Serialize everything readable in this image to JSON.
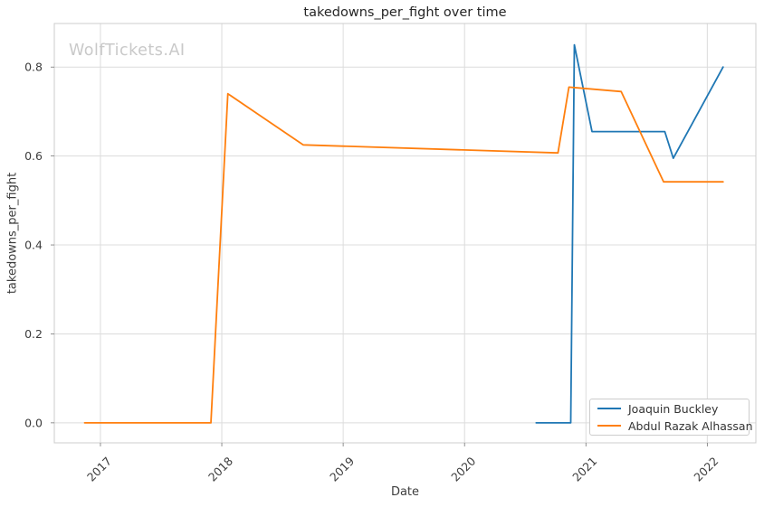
{
  "chart_data": {
    "type": "line",
    "title": "takedowns_per_fight over time",
    "xlabel": "Date",
    "ylabel": "takedowns_per_fight",
    "watermark": "WolfTickets.AI",
    "grid": true,
    "legend_position": "lower right",
    "x_unit": "decimal_year",
    "xlim": [
      2016.62,
      2022.4
    ],
    "ylim": [
      -0.045,
      0.898
    ],
    "x_ticks": [
      2017,
      2018,
      2019,
      2020,
      2021,
      2022
    ],
    "y_ticks": [
      0.0,
      0.2,
      0.4,
      0.6,
      0.8
    ],
    "series": [
      {
        "name": "Joaquin Buckley",
        "color": "#1f77b4",
        "points": [
          [
            2020.59,
            0.0
          ],
          [
            2020.875,
            0.0
          ],
          [
            2020.905,
            0.85
          ],
          [
            2021.05,
            0.655
          ],
          [
            2021.65,
            0.655
          ],
          [
            2021.72,
            0.595
          ],
          [
            2022.13,
            0.8
          ]
        ]
      },
      {
        "name": "Abdul Razak Alhassan",
        "color": "#ff7f0e",
        "points": [
          [
            2016.87,
            0.0
          ],
          [
            2017.91,
            0.0
          ],
          [
            2018.05,
            0.74
          ],
          [
            2018.67,
            0.625
          ],
          [
            2020.77,
            0.607
          ],
          [
            2020.86,
            0.755
          ],
          [
            2021.29,
            0.745
          ],
          [
            2021.64,
            0.542
          ],
          [
            2022.13,
            0.542
          ]
        ]
      }
    ]
  }
}
